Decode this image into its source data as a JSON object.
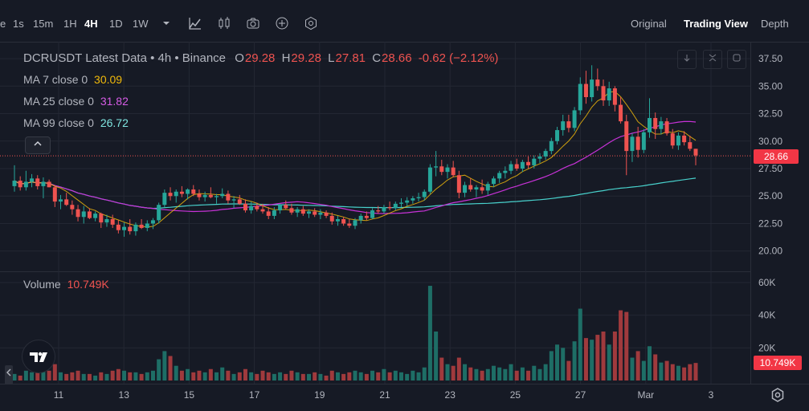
{
  "toolbar": {
    "intervals": [
      "e",
      "1s",
      "15m",
      "1H",
      "4H",
      "1D",
      "1W"
    ],
    "active_interval": "4H",
    "icons": [
      "chevron-down-icon",
      "indicator-icon",
      "candle-type-icon",
      "camera-icon",
      "add-icon",
      "settings-hex-icon"
    ]
  },
  "view_tabs": {
    "original": "Original",
    "trading_view": "Trading View",
    "depth": "Depth",
    "active": "Trading View"
  },
  "legend": {
    "title": "DCRUSDT Latest Data • 4h • Binance",
    "o_label": "O",
    "o_value": "29.28",
    "h_label": "H",
    "h_value": "29.28",
    "l_label": "L",
    "l_value": "27.81",
    "c_label": "C",
    "c_value": "28.66",
    "change": "-0.62 (−2.12%)",
    "ma7_label": "MA 7 close 0",
    "ma7_value": "30.09",
    "ma25_label": "MA 25 close 0",
    "ma25_value": "31.82",
    "ma99_label": "MA 99 close 0",
    "ma99_value": "26.72",
    "volume_label": "Volume",
    "volume_value": "10.749K"
  },
  "price_badge": "28.66",
  "volume_badge": "10.749K",
  "colors": {
    "up": "#26a69a",
    "down": "#ef5350",
    "ma7": "#f0b90b",
    "ma25": "#c832d8",
    "ma99": "#48d1cc",
    "bg": "#161a25"
  },
  "chart_data": {
    "type": "candlestick",
    "price_axis": {
      "ticks": [
        "37.50",
        "35.00",
        "32.50",
        "30.00",
        "27.50",
        "25.00",
        "22.50",
        "20.00"
      ],
      "ylim": [
        18.3,
        38.6
      ]
    },
    "volume_axis": {
      "ticks": [
        "60K",
        "40K",
        "20K"
      ]
    },
    "x_ticks": [
      "11",
      "13",
      "15",
      "17",
      "19",
      "21",
      "23",
      "25",
      "27",
      "Mar",
      "3"
    ],
    "last_close": 28.66,
    "candles": [
      [
        25.9,
        27.8,
        25.4,
        26.4,
        4000
      ],
      [
        26.4,
        26.8,
        25.5,
        25.8,
        3000
      ],
      [
        25.8,
        27.3,
        25.5,
        26.3,
        6000
      ],
      [
        26.3,
        27.0,
        25.8,
        26.6,
        5000
      ],
      [
        26.6,
        26.9,
        25.6,
        25.9,
        5000
      ],
      [
        25.9,
        26.7,
        24.8,
        26.3,
        8000
      ],
      [
        26.3,
        26.5,
        25.8,
        25.8,
        6000
      ],
      [
        25.8,
        26.0,
        24.0,
        24.5,
        10000
      ],
      [
        24.5,
        25.1,
        23.8,
        24.7,
        5000
      ],
      [
        24.7,
        25.3,
        24.1,
        24.2,
        4000
      ],
      [
        24.2,
        24.6,
        23.3,
        23.8,
        5000
      ],
      [
        23.8,
        24.2,
        22.7,
        23.1,
        6000
      ],
      [
        23.1,
        24.1,
        22.5,
        23.6,
        4000
      ],
      [
        23.6,
        23.9,
        22.9,
        23.0,
        4000
      ],
      [
        23.0,
        23.6,
        22.7,
        23.4,
        3000
      ],
      [
        23.4,
        23.5,
        22.1,
        22.6,
        5000
      ],
      [
        22.6,
        23.3,
        22.2,
        22.9,
        4000
      ],
      [
        22.9,
        23.3,
        22.1,
        22.4,
        6000
      ],
      [
        22.4,
        22.8,
        21.6,
        21.9,
        7000
      ],
      [
        21.9,
        22.6,
        21.3,
        22.2,
        6000
      ],
      [
        22.2,
        22.9,
        21.5,
        21.8,
        5000
      ],
      [
        21.8,
        22.6,
        21.4,
        22.4,
        5000
      ],
      [
        22.4,
        22.9,
        22.0,
        22.1,
        4000
      ],
      [
        22.1,
        22.8,
        21.8,
        22.5,
        5000
      ],
      [
        22.5,
        23.0,
        22.0,
        22.8,
        6000
      ],
      [
        22.8,
        24.4,
        22.5,
        24.2,
        13000
      ],
      [
        24.2,
        25.6,
        24.0,
        25.3,
        18000
      ],
      [
        25.3,
        25.8,
        24.6,
        25.0,
        15000
      ],
      [
        25.0,
        25.6,
        24.4,
        25.4,
        9000
      ],
      [
        25.4,
        25.9,
        24.9,
        25.2,
        6000
      ],
      [
        25.2,
        25.7,
        24.7,
        25.6,
        7000
      ],
      [
        25.6,
        26.0,
        25.0,
        25.2,
        5000
      ],
      [
        25.2,
        25.6,
        24.6,
        24.9,
        6000
      ],
      [
        24.9,
        25.4,
        24.5,
        25.1,
        5000
      ],
      [
        25.1,
        25.8,
        24.8,
        24.9,
        7000
      ],
      [
        24.9,
        25.2,
        24.3,
        25.0,
        5000
      ],
      [
        25.0,
        25.7,
        24.8,
        25.2,
        8000
      ],
      [
        25.2,
        25.5,
        24.3,
        24.6,
        6000
      ],
      [
        24.6,
        25.0,
        23.9,
        24.7,
        4000
      ],
      [
        24.7,
        25.1,
        24.2,
        24.3,
        5000
      ],
      [
        24.3,
        24.7,
        23.5,
        23.7,
        7000
      ],
      [
        23.7,
        24.5,
        23.4,
        24.1,
        5000
      ],
      [
        24.1,
        24.4,
        23.6,
        23.8,
        4000
      ],
      [
        23.8,
        24.3,
        23.4,
        23.6,
        6000
      ],
      [
        23.6,
        24.0,
        22.9,
        23.2,
        5000
      ],
      [
        23.2,
        24.0,
        22.9,
        23.7,
        4000
      ],
      [
        23.7,
        24.3,
        23.4,
        24.2,
        5000
      ],
      [
        24.2,
        24.6,
        23.8,
        23.9,
        4000
      ],
      [
        23.9,
        24.3,
        23.3,
        23.5,
        6000
      ],
      [
        23.5,
        24.0,
        23.1,
        23.8,
        5000
      ],
      [
        23.8,
        24.1,
        23.2,
        23.4,
        4000
      ],
      [
        23.4,
        23.8,
        23.0,
        23.6,
        4000
      ],
      [
        23.6,
        23.9,
        23.1,
        23.3,
        5000
      ],
      [
        23.3,
        23.8,
        22.9,
        23.5,
        4000
      ],
      [
        23.5,
        23.7,
        23.0,
        23.2,
        3000
      ],
      [
        23.2,
        23.5,
        22.4,
        22.7,
        6000
      ],
      [
        22.7,
        23.2,
        22.3,
        22.9,
        5000
      ],
      [
        22.9,
        23.1,
        22.3,
        22.5,
        4000
      ],
      [
        22.5,
        22.9,
        22.1,
        22.3,
        5000
      ],
      [
        22.3,
        23.0,
        22.0,
        22.8,
        6000
      ],
      [
        22.8,
        23.4,
        22.5,
        23.2,
        5000
      ],
      [
        23.2,
        23.6,
        22.8,
        23.0,
        4000
      ],
      [
        23.0,
        23.9,
        22.9,
        23.7,
        6000
      ],
      [
        23.7,
        24.1,
        23.4,
        23.6,
        5000
      ],
      [
        23.6,
        24.2,
        23.4,
        24.0,
        7000
      ],
      [
        24.0,
        24.5,
        23.7,
        23.9,
        5000
      ],
      [
        23.9,
        24.5,
        23.7,
        24.3,
        6000
      ],
      [
        24.3,
        24.8,
        24.0,
        24.4,
        5000
      ],
      [
        24.4,
        24.9,
        24.1,
        24.6,
        4000
      ],
      [
        24.6,
        25.0,
        24.3,
        24.8,
        6000
      ],
      [
        24.8,
        25.3,
        24.5,
        24.9,
        5000
      ],
      [
        24.9,
        25.6,
        24.6,
        25.4,
        8000
      ],
      [
        25.4,
        27.9,
        25.2,
        27.6,
        58000
      ],
      [
        27.6,
        29.1,
        26.8,
        27.7,
        30000
      ],
      [
        27.7,
        28.3,
        26.9,
        27.2,
        14000
      ],
      [
        27.2,
        27.9,
        26.6,
        27.6,
        10000
      ],
      [
        27.6,
        28.2,
        26.7,
        26.9,
        9000
      ],
      [
        26.9,
        27.3,
        24.8,
        25.3,
        14000
      ],
      [
        25.3,
        26.3,
        24.9,
        26.0,
        10000
      ],
      [
        26.0,
        26.6,
        25.4,
        25.6,
        8000
      ],
      [
        25.6,
        26.0,
        24.9,
        25.8,
        7000
      ],
      [
        25.8,
        26.5,
        25.2,
        25.5,
        6000
      ],
      [
        25.5,
        26.3,
        25.1,
        26.1,
        7000
      ],
      [
        26.1,
        26.8,
        25.8,
        26.6,
        9000
      ],
      [
        26.6,
        27.3,
        26.2,
        27.1,
        8000
      ],
      [
        27.1,
        27.7,
        26.6,
        27.3,
        7000
      ],
      [
        27.3,
        28.2,
        27.0,
        27.9,
        10000
      ],
      [
        27.9,
        28.4,
        27.3,
        27.5,
        6000
      ],
      [
        27.5,
        28.3,
        27.2,
        28.1,
        8000
      ],
      [
        28.1,
        28.6,
        27.5,
        27.8,
        6000
      ],
      [
        27.8,
        28.7,
        27.5,
        28.4,
        9000
      ],
      [
        28.4,
        28.9,
        28.0,
        28.6,
        7000
      ],
      [
        28.6,
        29.3,
        28.3,
        29.1,
        10000
      ],
      [
        29.1,
        30.3,
        28.8,
        30.0,
        18000
      ],
      [
        30.0,
        31.3,
        29.7,
        31.0,
        22000
      ],
      [
        31.0,
        32.4,
        30.5,
        31.8,
        20000
      ],
      [
        31.8,
        32.4,
        30.8,
        31.2,
        12000
      ],
      [
        31.2,
        33.1,
        30.9,
        32.8,
        24000
      ],
      [
        32.8,
        35.8,
        32.4,
        35.2,
        44000
      ],
      [
        35.2,
        36.4,
        33.4,
        34.0,
        26000
      ],
      [
        34.0,
        36.9,
        33.6,
        35.6,
        25000
      ],
      [
        35.6,
        36.6,
        34.6,
        35.0,
        28000
      ],
      [
        35.0,
        35.6,
        33.2,
        33.7,
        30000
      ],
      [
        33.7,
        35.4,
        33.2,
        34.8,
        22000
      ],
      [
        34.8,
        35.0,
        32.7,
        33.3,
        30000
      ],
      [
        33.3,
        34.0,
        31.6,
        31.8,
        43000
      ],
      [
        31.8,
        32.4,
        26.9,
        29.1,
        42000
      ],
      [
        29.1,
        30.7,
        28.1,
        30.4,
        14000
      ],
      [
        30.4,
        31.3,
        28.5,
        29.2,
        18000
      ],
      [
        29.2,
        31.1,
        28.9,
        30.8,
        12000
      ],
      [
        30.8,
        33.9,
        30.3,
        32.1,
        21000
      ],
      [
        32.1,
        32.6,
        30.2,
        31.1,
        16000
      ],
      [
        31.1,
        32.2,
        30.6,
        31.8,
        11000
      ],
      [
        31.8,
        32.1,
        30.5,
        30.7,
        12000
      ],
      [
        30.7,
        31.1,
        29.3,
        29.6,
        10000
      ],
      [
        29.6,
        30.8,
        29.2,
        30.5,
        9000
      ],
      [
        30.5,
        30.9,
        29.6,
        29.9,
        8000
      ],
      [
        29.9,
        30.5,
        29.1,
        29.3,
        10000
      ],
      [
        29.3,
        29.3,
        27.8,
        28.7,
        10749
      ]
    ]
  }
}
